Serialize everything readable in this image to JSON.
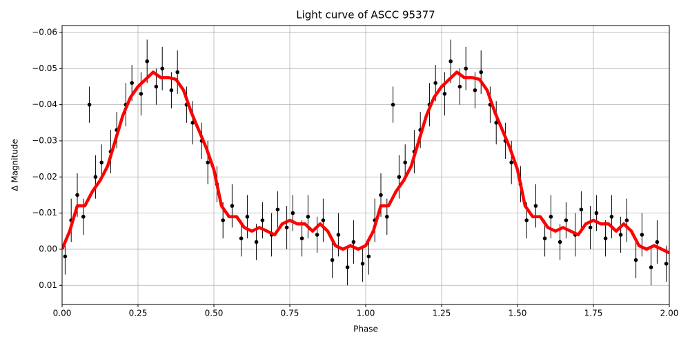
{
  "chart_data": {
    "type": "scatter",
    "title": "Light curve of ASCC 95377",
    "x_label": "Phase",
    "y_label": "Δ Magnitude",
    "xlim": [
      0,
      2
    ],
    "ylim": [
      0.0153,
      -0.0619
    ],
    "grid": true,
    "xticks": [
      {
        "value": 0,
        "label": "0.00"
      },
      0.25,
      {
        "value": 0.5,
        "label": "0.50"
      },
      0.75,
      {
        "value": 1,
        "label": "1.00"
      },
      1.25,
      {
        "value": 1.5,
        "label": "1.50"
      },
      1.75,
      {
        "value": 2,
        "label": "2.00"
      }
    ],
    "yticks": [
      {
        "value": -0.06,
        "label": "−0.06"
      },
      {
        "value": -0.05,
        "label": "−0.05"
      },
      {
        "value": -0.04,
        "label": "−0.04"
      },
      {
        "value": -0.03,
        "label": "−0.03"
      },
      {
        "value": -0.02,
        "label": "−0.02"
      },
      {
        "value": -0.01,
        "label": "−0.01"
      },
      {
        "value": 0,
        "label": "0.00"
      },
      0.01
    ],
    "series": [
      {
        "kind": "errorbar",
        "color": "#000000",
        "x": [
          0.01,
          0.03,
          0.05,
          0.07,
          0.09,
          0.11,
          0.13,
          0.16,
          0.18,
          0.21,
          0.23,
          0.26,
          0.28,
          0.31,
          0.33,
          0.36,
          0.38,
          0.41,
          0.43,
          0.46,
          0.48,
          0.51,
          0.53,
          0.56,
          0.59,
          0.61,
          0.64,
          0.66,
          0.69,
          0.71,
          0.74,
          0.76,
          0.79,
          0.81,
          0.84,
          0.86,
          0.89,
          0.91,
          0.94,
          0.96,
          0.99,
          1.01,
          1.03,
          1.05,
          1.07,
          1.09,
          1.11,
          1.13,
          1.16,
          1.18,
          1.21,
          1.23,
          1.26,
          1.28,
          1.31,
          1.33,
          1.36,
          1.38,
          1.41,
          1.43,
          1.46,
          1.48,
          1.51,
          1.53,
          1.56,
          1.59,
          1.61,
          1.64,
          1.66,
          1.69,
          1.71,
          1.74,
          1.76,
          1.79,
          1.81,
          1.84,
          1.86,
          1.89,
          1.91,
          1.94,
          1.96,
          1.99
        ],
        "values": [
          0.002,
          -0.008,
          -0.015,
          -0.009,
          -0.04,
          -0.02,
          -0.024,
          -0.027,
          -0.033,
          -0.04,
          -0.046,
          -0.043,
          -0.052,
          -0.045,
          -0.05,
          -0.044,
          -0.049,
          -0.04,
          -0.035,
          -0.03,
          -0.024,
          -0.018,
          -0.008,
          -0.012,
          -0.003,
          -0.009,
          -0.002,
          -0.008,
          -0.004,
          -0.011,
          -0.006,
          -0.01,
          -0.003,
          -0.009,
          -0.004,
          -0.008,
          0.003,
          -0.004,
          0.005,
          -0.002,
          0.004,
          0.002,
          -0.008,
          -0.015,
          -0.009,
          -0.04,
          -0.02,
          -0.024,
          -0.027,
          -0.033,
          -0.04,
          -0.046,
          -0.043,
          -0.052,
          -0.045,
          -0.05,
          -0.044,
          -0.049,
          -0.04,
          -0.035,
          -0.03,
          -0.024,
          -0.018,
          -0.008,
          -0.012,
          -0.003,
          -0.009,
          -0.002,
          -0.008,
          -0.004,
          -0.011,
          -0.006,
          -0.01,
          -0.003,
          -0.009,
          -0.004,
          -0.008,
          0.003,
          -0.004,
          0.005,
          -0.002,
          0.004
        ],
        "errors": [
          0.005,
          0.006,
          0.006,
          0.005,
          0.005,
          0.006,
          0.005,
          0.006,
          0.005,
          0.006,
          0.005,
          0.006,
          0.006,
          0.005,
          0.006,
          0.005,
          0.006,
          0.005,
          0.006,
          0.005,
          0.006,
          0.005,
          0.005,
          0.006,
          0.005,
          0.006,
          0.005,
          0.005,
          0.006,
          0.005,
          0.006,
          0.005,
          0.005,
          0.006,
          0.005,
          0.006,
          0.005,
          0.006,
          0.005,
          0.006,
          0.005,
          0.005,
          0.006,
          0.006,
          0.005,
          0.005,
          0.006,
          0.005,
          0.006,
          0.005,
          0.006,
          0.005,
          0.006,
          0.006,
          0.005,
          0.006,
          0.005,
          0.006,
          0.005,
          0.006,
          0.005,
          0.006,
          0.005,
          0.005,
          0.006,
          0.005,
          0.006,
          0.005,
          0.005,
          0.006,
          0.005,
          0.006,
          0.005,
          0.005,
          0.006,
          0.005,
          0.006,
          0.005,
          0.006,
          0.005,
          0.006,
          0.005
        ]
      },
      {
        "kind": "line",
        "color": "#ff0000",
        "x": [
          0,
          0.025,
          0.05,
          0.075,
          0.1,
          0.125,
          0.15,
          0.175,
          0.2,
          0.225,
          0.25,
          0.275,
          0.3,
          0.325,
          0.35,
          0.375,
          0.4,
          0.425,
          0.45,
          0.475,
          0.5,
          0.525,
          0.55,
          0.575,
          0.6,
          0.625,
          0.65,
          0.675,
          0.7,
          0.725,
          0.75,
          0.775,
          0.8,
          0.825,
          0.85,
          0.875,
          0.9,
          0.925,
          0.95,
          0.975,
          1,
          1.025,
          1.05,
          1.075,
          1.1,
          1.125,
          1.15,
          1.175,
          1.2,
          1.225,
          1.25,
          1.275,
          1.3,
          1.325,
          1.35,
          1.375,
          1.4,
          1.425,
          1.45,
          1.475,
          1.5,
          1.525,
          1.55,
          1.575,
          1.6,
          1.625,
          1.65,
          1.675,
          1.7,
          1.725,
          1.75,
          1.775,
          1.8,
          1.825,
          1.85,
          1.875,
          1.9,
          1.925,
          1.95,
          1.975,
          2
        ],
        "values": [
          0.0,
          -0.005,
          -0.012,
          -0.012,
          -0.016,
          -0.019,
          -0.023,
          -0.03,
          -0.037,
          -0.042,
          -0.045,
          -0.047,
          -0.049,
          -0.0475,
          -0.0475,
          -0.047,
          -0.044,
          -0.038,
          -0.033,
          -0.028,
          -0.022,
          -0.012,
          -0.009,
          -0.009,
          -0.006,
          -0.005,
          -0.006,
          -0.005,
          -0.004,
          -0.007,
          -0.008,
          -0.007,
          -0.007,
          -0.005,
          -0.007,
          -0.005,
          -0.001,
          0.0,
          -0.001,
          0.0,
          -0.001,
          -0.005,
          -0.012,
          -0.012,
          -0.016,
          -0.019,
          -0.023,
          -0.03,
          -0.037,
          -0.042,
          -0.045,
          -0.047,
          -0.049,
          -0.0475,
          -0.0475,
          -0.047,
          -0.044,
          -0.038,
          -0.033,
          -0.028,
          -0.022,
          -0.012,
          -0.009,
          -0.009,
          -0.006,
          -0.005,
          -0.006,
          -0.005,
          -0.004,
          -0.007,
          -0.008,
          -0.007,
          -0.007,
          -0.005,
          -0.007,
          -0.005,
          -0.001,
          0.0,
          -0.001,
          0.0,
          0.001
        ]
      }
    ]
  }
}
